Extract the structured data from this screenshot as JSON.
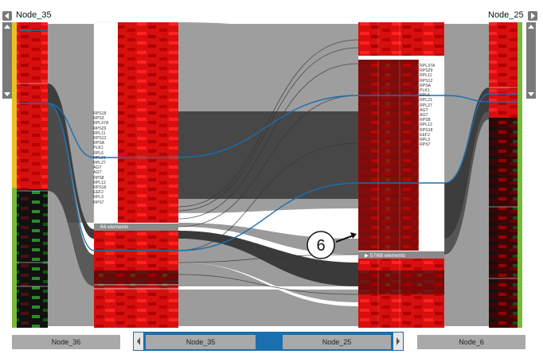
{
  "top_nodes": {
    "left": "Node_35",
    "right": "Node_25"
  },
  "left_block": {
    "genes": [
      "RPS18",
      "RPS3",
      "RPL37A",
      "RPS29",
      "RPL11",
      "RPS12",
      "RPSA",
      "PLK1",
      "RPL6",
      "RPL21",
      "RPL27",
      "AGT",
      "AGT",
      "RPS8",
      "RPL12",
      "RPS18",
      "EEF2",
      "RPL3",
      "RPS7"
    ],
    "count_label": "64 elements"
  },
  "right_block": {
    "genes": [
      "RPL37A",
      "RPS29",
      "RPL11",
      "RPS12",
      "RPSA",
      "PLK1",
      "RPL6",
      "RPL21",
      "RPL27",
      "AGT",
      "AGT",
      "RPS8",
      "RPL12",
      "RPS18",
      "EEF2",
      "RPL3",
      "RPS7"
    ],
    "count_label": "▶ 57/68 elements"
  },
  "annotation": {
    "number": "6"
  },
  "bottom": {
    "left_node": "Node_36",
    "center_nodes": [
      "Node_35",
      "Node_25"
    ],
    "right_node": "Node_6"
  },
  "colors": {
    "accent_blue": "#1a6faf",
    "heat_red": "#e01010",
    "flow_gray": "#9a9a9a",
    "flow_dark": "#3d3d3d"
  }
}
